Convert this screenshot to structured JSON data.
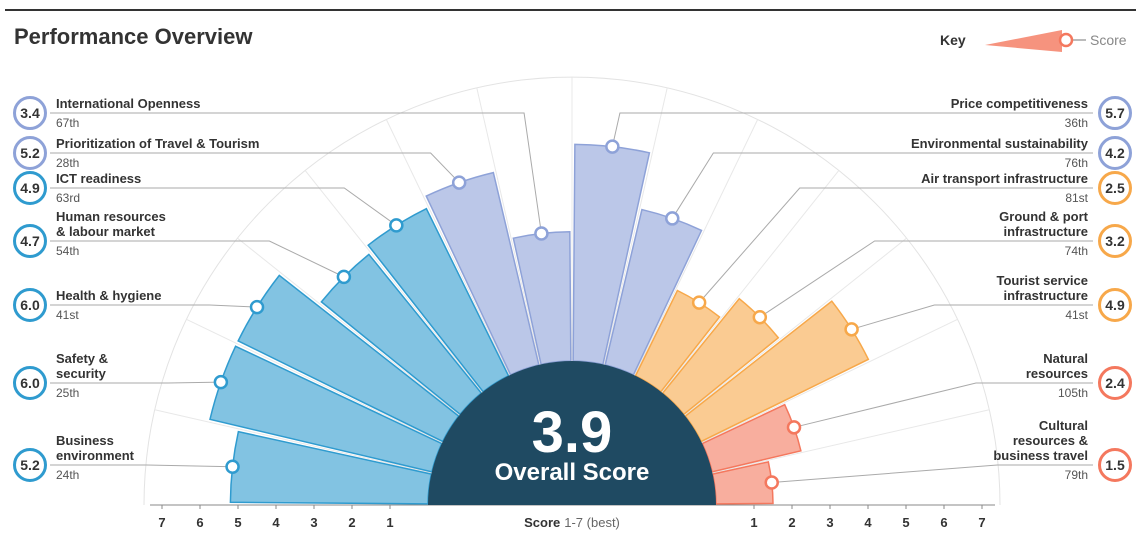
{
  "chart_data": {
    "type": "polar_bar",
    "title": "Performance Overview",
    "key_title": "Key",
    "key_label": "Score",
    "overall_value": 3.9,
    "overall_label": "Overall Score",
    "axis_label": "Score",
    "axis_note": "1-7 (best)",
    "rlim": [
      0,
      7
    ],
    "rticks": [
      1,
      2,
      3,
      4,
      5,
      6,
      7
    ],
    "categories": [
      "Business\nenvironment",
      "Safety &\nsecurity",
      "Health & hygiene",
      "Human resources\n& labour market",
      "ICT readiness",
      "Prioritization of Travel & Tourism",
      "International Openness",
      "Price competitiveness",
      "Environmental sustainability",
      "Air transport infrastructure",
      "Ground & port\ninfrastructure",
      "Tourist service\ninfrastructure",
      "Natural\nresources",
      "Cultural\nresources &\nbusiness travel"
    ],
    "values": [
      5.2,
      6.0,
      6.0,
      4.7,
      4.9,
      5.2,
      3.4,
      5.7,
      4.2,
      2.5,
      3.2,
      4.9,
      2.4,
      1.5
    ],
    "value_labels": [
      "5.2",
      "6.0",
      "6.0",
      "4.7",
      "4.9",
      "5.2",
      "3.4",
      "5.7",
      "4.2",
      "2.5",
      "3.2",
      "4.9",
      "2.4",
      "1.5"
    ],
    "ranks": [
      "24th",
      "25th",
      "41st",
      "54th",
      "63rd",
      "28th",
      "67th",
      "36th",
      "76th",
      "81st",
      "74th",
      "41st",
      "105th",
      "79th"
    ],
    "colors": [
      "#2f9bcf",
      "#2f9bcf",
      "#2f9bcf",
      "#2f9bcf",
      "#2f9bcf",
      "#8ea2d8",
      "#8ea2d8",
      "#8ea2d8",
      "#8ea2d8",
      "#f7a84a",
      "#f7a84a",
      "#f7a84a",
      "#f4785e",
      "#f4785e"
    ]
  }
}
